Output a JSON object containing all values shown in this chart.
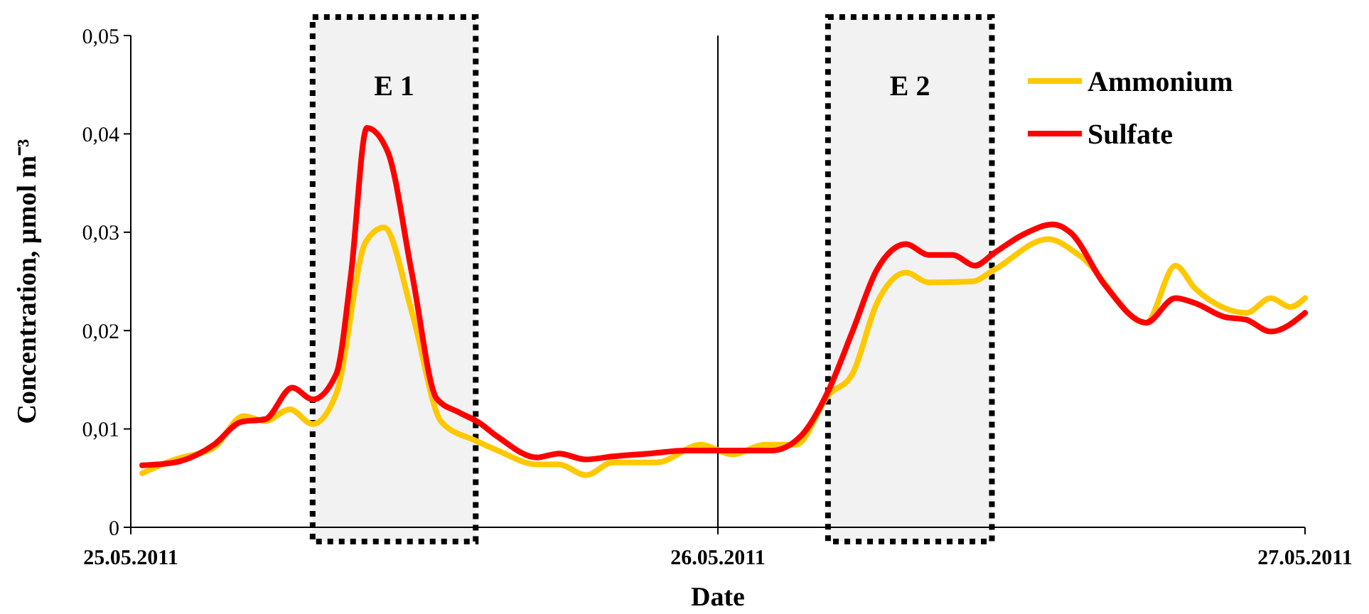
{
  "chart_data": {
    "type": "line",
    "xlabel": "Date",
    "ylabel": "Concentration, µmol m⁻³",
    "xlim": [
      "2011-05-25",
      "2011-05-27"
    ],
    "xticks": [
      {
        "value": "2011-05-25",
        "label": "25.05.2011"
      },
      {
        "value": "2011-05-26",
        "label": "26.05.2011"
      },
      {
        "value": "2011-05-27",
        "label": "27.05.2011"
      }
    ],
    "ylim": [
      0,
      0.05
    ],
    "yticks": [
      {
        "value": 0,
        "label": "0"
      },
      {
        "value": 0.01,
        "label": "0,01"
      },
      {
        "value": 0.02,
        "label": "0,02"
      },
      {
        "value": 0.03,
        "label": "0,03"
      },
      {
        "value": 0.04,
        "label": "0,04"
      },
      {
        "value": 0.05,
        "label": "0,05"
      }
    ],
    "grid": false,
    "legend": "top right",
    "marker": "none",
    "line_style": "solid",
    "series": [
      {
        "name": "Ammonium",
        "color": "#ffc800",
        "x": [
          "2011-05-25T00:28",
          "2011-05-25T01:48",
          "2011-05-25T03:24",
          "2011-05-25T04:36",
          "2011-05-25T05:30",
          "2011-05-25T06:30",
          "2011-05-25T07:26",
          "2011-05-25T08:24",
          "2011-05-25T09:36",
          "2011-05-25T10:21",
          "2011-05-25T11:30",
          "2011-05-25T12:42",
          "2011-05-25T14:06",
          "2011-05-25T15:00",
          "2011-05-25T16:36",
          "2011-05-25T17:30",
          "2011-05-25T18:36",
          "2011-05-25T19:42",
          "2011-05-25T21:30",
          "2011-05-25T23:18",
          "2011-05-26T00:36",
          "2011-05-26T01:54",
          "2011-05-26T03:12",
          "2011-05-26T04:30",
          "2011-05-26T05:30",
          "2011-05-26T06:30",
          "2011-05-26T07:42",
          "2011-05-26T08:36",
          "2011-05-26T10:24",
          "2011-05-26T11:18",
          "2011-05-26T13:30",
          "2011-05-26T14:48",
          "2011-05-26T17:30",
          "2011-05-26T18:42",
          "2011-05-26T19:30",
          "2011-05-26T20:42",
          "2011-05-26T21:36",
          "2011-05-26T22:36",
          "2011-05-26T23:24",
          "2011-05-27T00:00"
        ],
        "values": [
          0.0055,
          0.0069,
          0.0081,
          0.0113,
          0.0108,
          0.012,
          0.0105,
          0.0136,
          0.029,
          0.0305,
          0.0218,
          0.0107,
          0.0088,
          0.0078,
          0.0064,
          0.0064,
          0.0053,
          0.0066,
          0.0066,
          0.0084,
          0.0074,
          0.0084,
          0.0084,
          0.0134,
          0.0156,
          0.0228,
          0.0259,
          0.0249,
          0.025,
          0.0262,
          0.0293,
          0.0276,
          0.0208,
          0.0266,
          0.0243,
          0.0223,
          0.0218,
          0.0233,
          0.0224,
          0.0233
        ]
      },
      {
        "name": "Sulfate",
        "color": "#ff0000",
        "x": [
          "2011-05-25T00:28",
          "2011-05-25T01:48",
          "2011-05-25T03:24",
          "2011-05-25T04:30",
          "2011-05-25T05:30",
          "2011-05-25T06:36",
          "2011-05-25T07:26",
          "2011-05-25T08:24",
          "2011-05-25T09:00",
          "2011-05-25T09:39",
          "2011-05-25T10:30",
          "2011-05-25T11:30",
          "2011-05-25T12:30",
          "2011-05-25T13:24",
          "2011-05-25T14:12",
          "2011-05-25T15:00",
          "2011-05-25T16:36",
          "2011-05-25T17:30",
          "2011-05-25T18:36",
          "2011-05-25T19:42",
          "2011-05-25T21:12",
          "2011-05-25T22:42",
          "2011-05-26T00:00",
          "2011-05-26T02:12",
          "2011-05-26T03:24",
          "2011-05-26T04:30",
          "2011-05-26T05:30",
          "2011-05-26T06:30",
          "2011-05-26T07:42",
          "2011-05-26T08:36",
          "2011-05-26T09:36",
          "2011-05-26T10:30",
          "2011-05-26T11:18",
          "2011-05-26T12:30",
          "2011-05-26T13:42",
          "2011-05-26T14:24",
          "2011-05-26T15:48",
          "2011-05-26T17:30",
          "2011-05-26T18:42",
          "2011-05-26T19:30",
          "2011-05-26T20:42",
          "2011-05-26T21:36",
          "2011-05-26T22:36",
          "2011-05-27T00:00"
        ],
        "values": [
          0.0063,
          0.0066,
          0.0084,
          0.0107,
          0.011,
          0.0142,
          0.013,
          0.0156,
          0.0257,
          0.0406,
          0.0382,
          0.0257,
          0.0131,
          0.0117,
          0.0107,
          0.0092,
          0.0071,
          0.0075,
          0.0069,
          0.0072,
          0.0075,
          0.0078,
          0.0078,
          0.0078,
          0.0093,
          0.0138,
          0.0199,
          0.0262,
          0.0288,
          0.0277,
          0.0277,
          0.0266,
          0.0279,
          0.0298,
          0.0308,
          0.03,
          0.0247,
          0.0208,
          0.0233,
          0.0228,
          0.0214,
          0.0211,
          0.0199,
          0.0218
        ]
      }
    ],
    "ref_lines": [
      {
        "axis": "x",
        "value": "2011-05-26",
        "color": "#000000",
        "line_style": "solid"
      }
    ],
    "bands": [
      {
        "axis": "x",
        "from": "2011-05-25T07:26",
        "to": "2011-05-25T14:06",
        "label": "E 1",
        "color": "#000000"
      },
      {
        "axis": "x",
        "from": "2011-05-26T04:30",
        "to": "2011-05-26T11:12",
        "label": "E 2",
        "color": "#000000"
      }
    ]
  }
}
